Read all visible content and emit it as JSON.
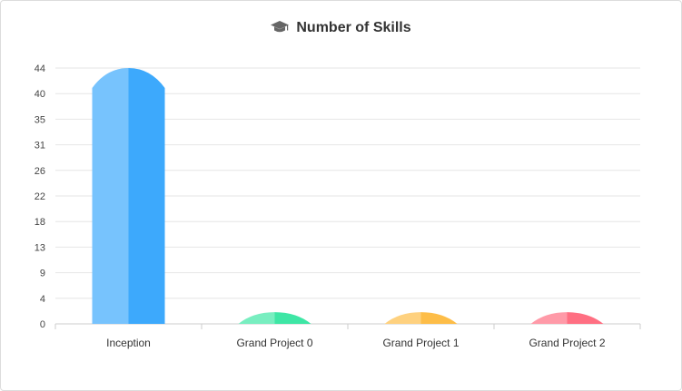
{
  "chart_data": {
    "type": "bar",
    "title": "Number of Skills",
    "title_icon": "graduation-cap-icon",
    "categories": [
      "Inception",
      "Grand Project 0",
      "Grand Project 1",
      "Grand Project 2"
    ],
    "values": [
      44,
      2,
      2,
      2
    ],
    "y_ticks": [
      "0",
      "4",
      "9",
      "13",
      "18",
      "22",
      "26",
      "31",
      "35",
      "40",
      "44"
    ],
    "ylim": [
      0,
      44
    ],
    "xlabel": "",
    "ylabel": "",
    "grid": true,
    "colors": [
      "#3da9fc",
      "#3ee6a5",
      "#fdbd48",
      "#ff6f82"
    ]
  }
}
